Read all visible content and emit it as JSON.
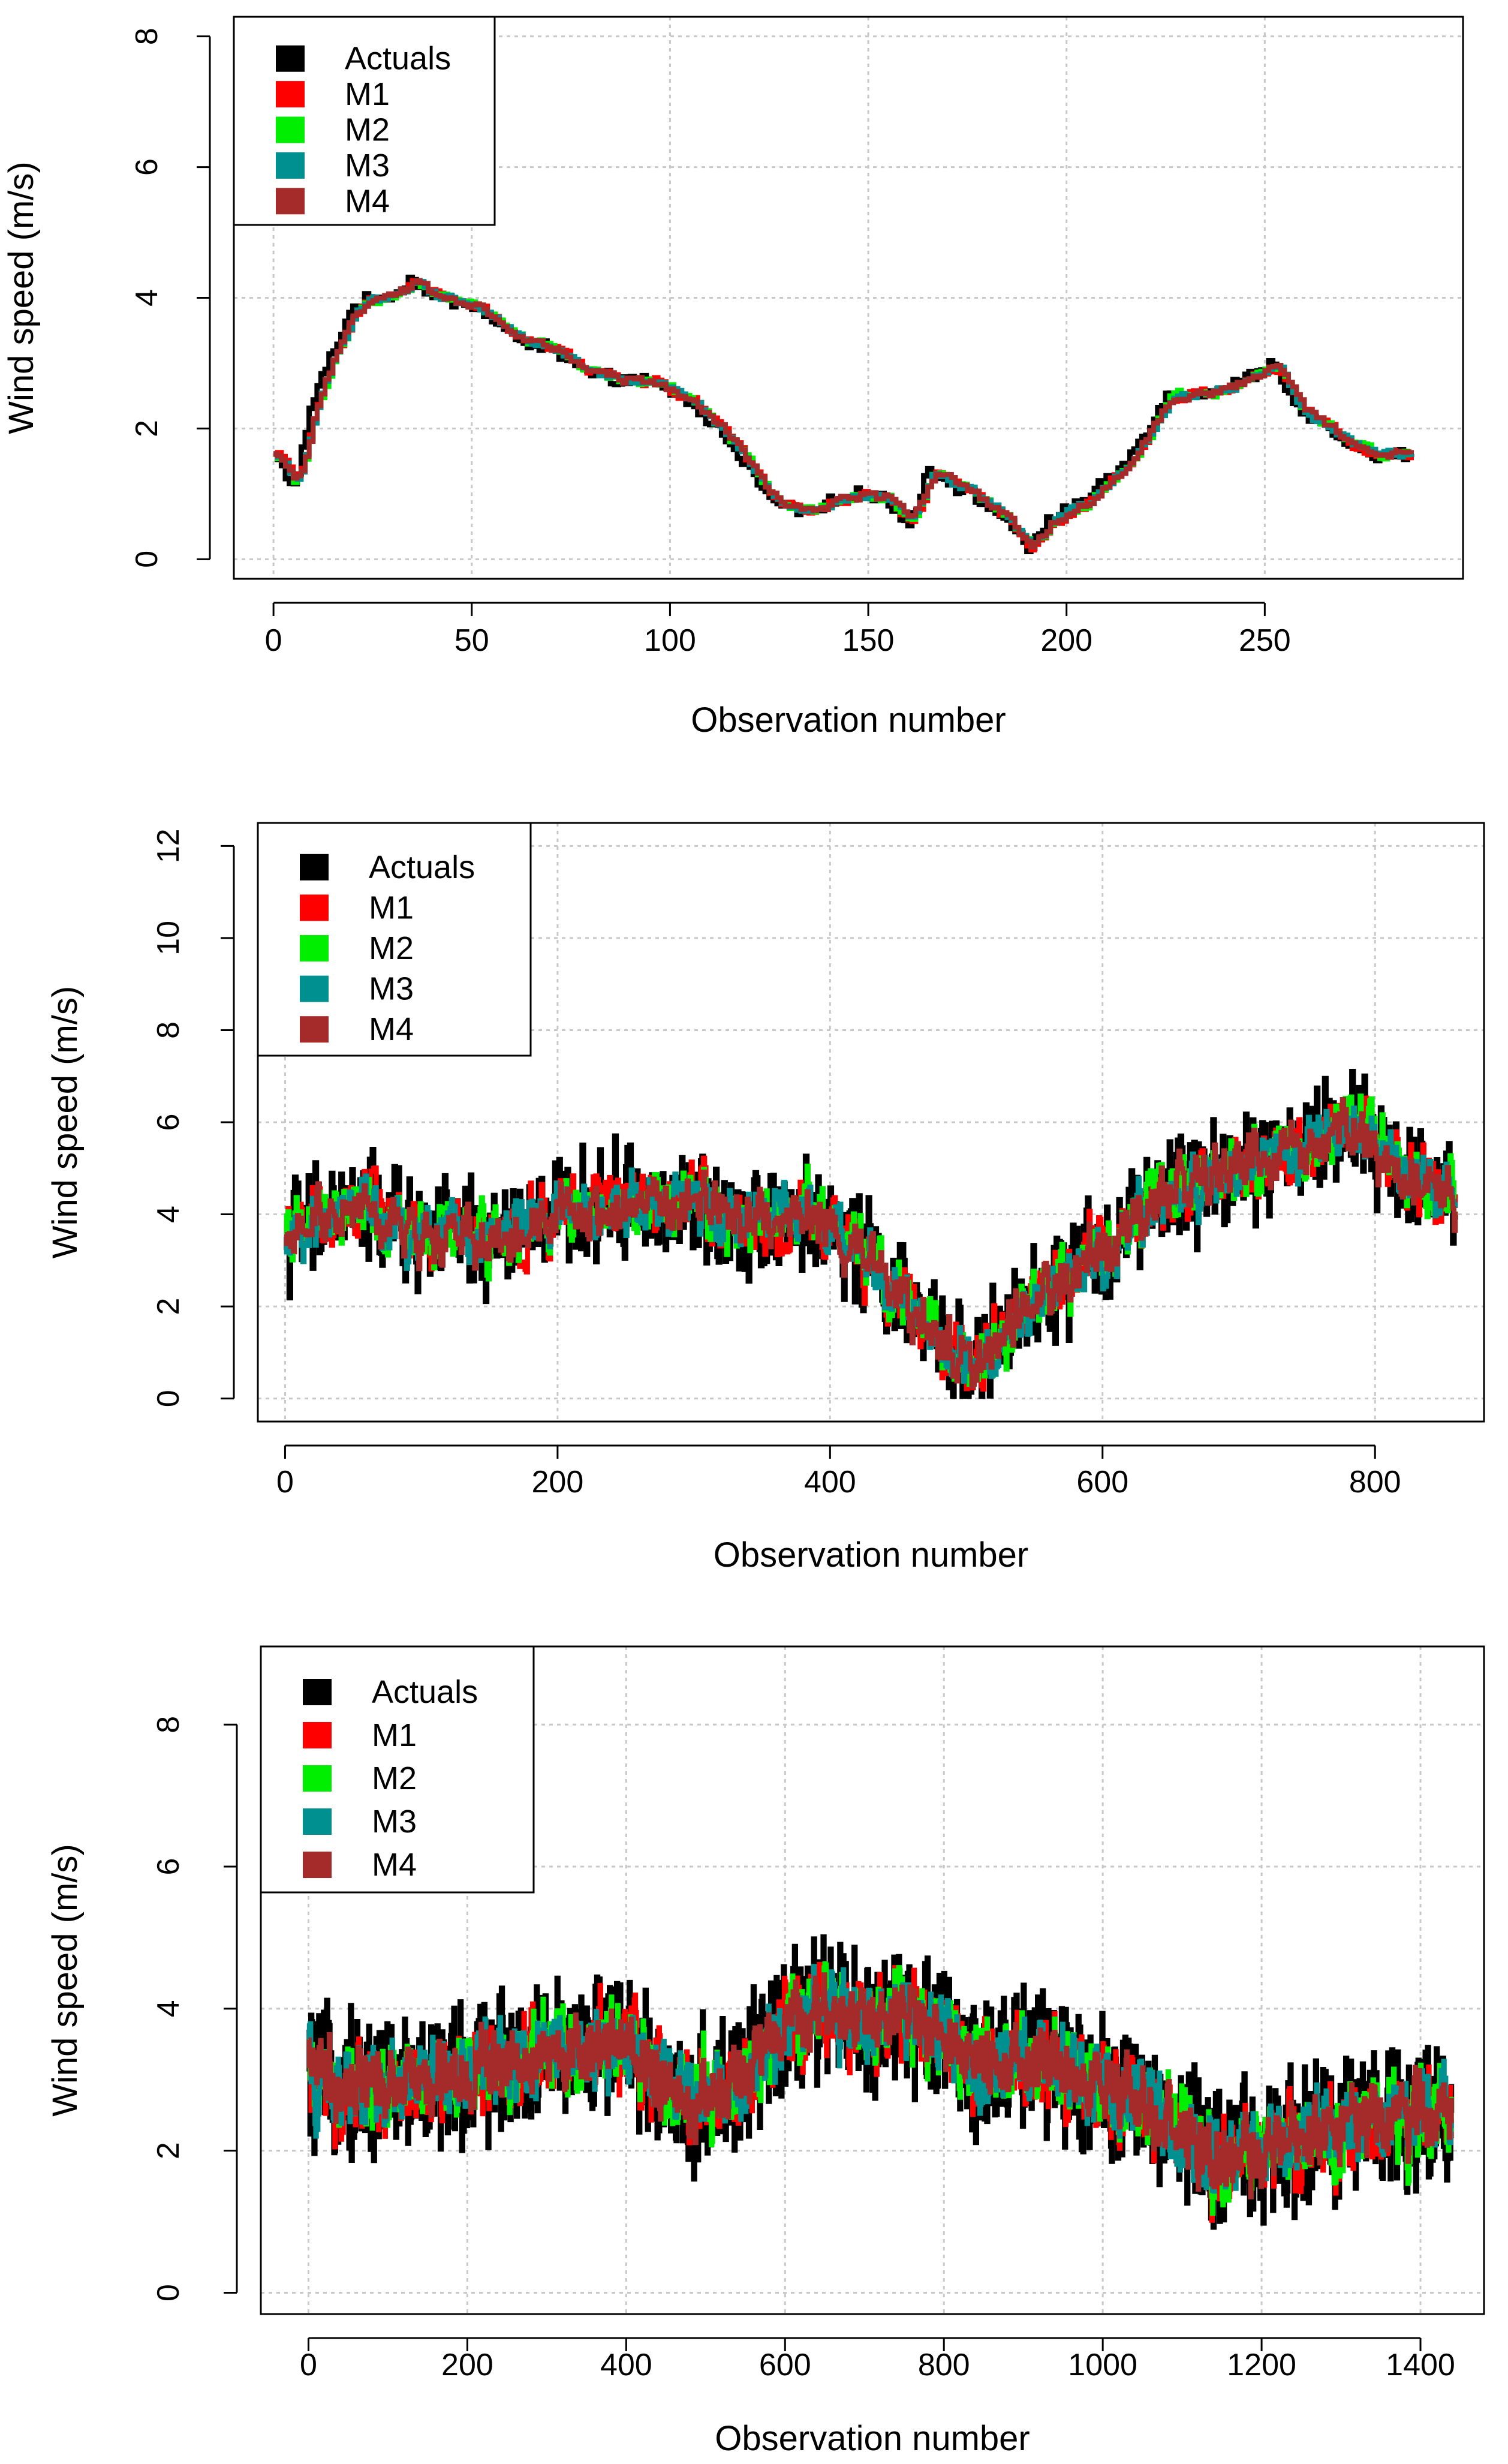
{
  "chart_data": [
    {
      "type": "line",
      "title": "",
      "xlabel": "Observation number",
      "ylabel": "Wind speed (m/s)",
      "xlim": [
        -10,
        300
      ],
      "ylim": [
        -0.3,
        8.3
      ],
      "xticks": [
        0,
        50,
        100,
        150,
        200,
        250
      ],
      "xtick_labels": [
        "0",
        "50",
        "100",
        "150",
        "200",
        "250"
      ],
      "yticks": [
        0,
        2,
        4,
        6,
        8
      ],
      "ytick_labels": [
        "0",
        "2",
        "4",
        "6",
        "8"
      ],
      "grid": true,
      "legend_position": "top-left",
      "n": 288,
      "series": [
        {
          "name": "Actuals",
          "color": "#000000",
          "noise": 0.08,
          "lag": 0
        },
        {
          "name": "M1",
          "color": "#ff0000",
          "noise": 0.06,
          "lag": 1
        },
        {
          "name": "M2",
          "color": "#00ee00",
          "noise": 0.06,
          "lag": 1
        },
        {
          "name": "M3",
          "color": "#009090",
          "noise": 0.05,
          "lag": 1
        },
        {
          "name": "M4",
          "color": "#a52a2a",
          "noise": 0.05,
          "lag": 1
        }
      ],
      "anchors": [
        [
          0,
          1.6
        ],
        [
          5,
          1.1
        ],
        [
          10,
          2.5
        ],
        [
          20,
          3.9
        ],
        [
          30,
          4.05
        ],
        [
          35,
          4.3
        ],
        [
          40,
          4.0
        ],
        [
          50,
          3.9
        ],
        [
          60,
          3.4
        ],
        [
          70,
          3.2
        ],
        [
          80,
          2.8
        ],
        [
          95,
          2.7
        ],
        [
          105,
          2.4
        ],
        [
          115,
          1.8
        ],
        [
          125,
          0.9
        ],
        [
          135,
          0.7
        ],
        [
          145,
          1.0
        ],
        [
          155,
          0.9
        ],
        [
          160,
          0.5
        ],
        [
          165,
          1.4
        ],
        [
          175,
          1.0
        ],
        [
          185,
          0.6
        ],
        [
          190,
          0.1
        ],
        [
          195,
          0.6
        ],
        [
          205,
          0.9
        ],
        [
          215,
          1.5
        ],
        [
          225,
          2.5
        ],
        [
          240,
          2.6
        ],
        [
          252,
          3.0
        ],
        [
          258,
          2.3
        ],
        [
          265,
          2.0
        ],
        [
          275,
          1.6
        ],
        [
          287,
          1.6
        ]
      ]
    },
    {
      "type": "line",
      "title": "",
      "xlabel": "Observation number",
      "ylabel": "Wind speed (m/s)",
      "xlim": [
        -20,
        880
      ],
      "ylim": [
        -0.5,
        12.5
      ],
      "xticks": [
        0,
        200,
        400,
        600,
        800
      ],
      "xtick_labels": [
        "0",
        "200",
        "400",
        "600",
        "800"
      ],
      "yticks": [
        0,
        2,
        4,
        6,
        8,
        10,
        12
      ],
      "ytick_labels": [
        "0",
        "2",
        "4",
        "6",
        "8",
        "10",
        "12"
      ],
      "grid": true,
      "legend_position": "top-left",
      "n": 860,
      "series": [
        {
          "name": "Actuals",
          "color": "#000000",
          "noise": 1.0,
          "lag": 0
        },
        {
          "name": "M1",
          "color": "#ff0000",
          "noise": 0.55,
          "lag": 1
        },
        {
          "name": "M2",
          "color": "#00ee00",
          "noise": 0.5,
          "lag": 1
        },
        {
          "name": "M3",
          "color": "#009090",
          "noise": 0.45,
          "lag": 1
        },
        {
          "name": "M4",
          "color": "#a52a2a",
          "noise": 0.4,
          "lag": 1
        }
      ],
      "anchors": [
        [
          0,
          3.5
        ],
        [
          50,
          4.2
        ],
        [
          100,
          3.6
        ],
        [
          150,
          3.4
        ],
        [
          200,
          4.0
        ],
        [
          250,
          4.3
        ],
        [
          300,
          4.1
        ],
        [
          350,
          4.0
        ],
        [
          400,
          3.8
        ],
        [
          430,
          3.0
        ],
        [
          460,
          1.8
        ],
        [
          490,
          1.0
        ],
        [
          510,
          0.8
        ],
        [
          530,
          1.5
        ],
        [
          560,
          2.3
        ],
        [
          600,
          3.2
        ],
        [
          650,
          4.5
        ],
        [
          700,
          5.0
        ],
        [
          750,
          5.5
        ],
        [
          780,
          6.0
        ],
        [
          820,
          5.0
        ],
        [
          860,
          4.4
        ]
      ]
    },
    {
      "type": "line",
      "title": "",
      "xlabel": "Observation number",
      "ylabel": "Wind speed (m/s)",
      "xlim": [
        -60,
        1480
      ],
      "ylim": [
        -0.3,
        9.1
      ],
      "xticks": [
        0,
        200,
        400,
        600,
        800,
        1000,
        1200,
        1400
      ],
      "xtick_labels": [
        "0",
        "200",
        "400",
        "600",
        "800",
        "1000",
        "1200",
        "1400"
      ],
      "yticks": [
        0,
        2,
        4,
        6,
        8
      ],
      "ytick_labels": [
        "0",
        "2",
        "4",
        "6",
        "8"
      ],
      "grid": true,
      "legend_position": "top-left",
      "n": 1440,
      "series": [
        {
          "name": "Actuals",
          "color": "#000000",
          "noise": 0.8,
          "lag": 0
        },
        {
          "name": "M1",
          "color": "#ff0000",
          "noise": 0.45,
          "lag": 1
        },
        {
          "name": "M2",
          "color": "#00ee00",
          "noise": 0.4,
          "lag": 1
        },
        {
          "name": "M3",
          "color": "#009090",
          "noise": 0.38,
          "lag": 1
        },
        {
          "name": "M4",
          "color": "#a52a2a",
          "noise": 0.3,
          "lag": 1
        }
      ],
      "anchors": [
        [
          0,
          3.0
        ],
        [
          100,
          2.9
        ],
        [
          200,
          3.1
        ],
        [
          300,
          3.4
        ],
        [
          400,
          3.5
        ],
        [
          470,
          2.7
        ],
        [
          550,
          3.0
        ],
        [
          600,
          3.8
        ],
        [
          650,
          4.0
        ],
        [
          700,
          3.8
        ],
        [
          750,
          4.0
        ],
        [
          800,
          3.5
        ],
        [
          850,
          3.2
        ],
        [
          900,
          3.3
        ],
        [
          1000,
          3.0
        ],
        [
          1100,
          2.3
        ],
        [
          1150,
          1.8
        ],
        [
          1200,
          2.0
        ],
        [
          1300,
          2.3
        ],
        [
          1400,
          2.6
        ],
        [
          1440,
          2.5
        ]
      ]
    }
  ]
}
